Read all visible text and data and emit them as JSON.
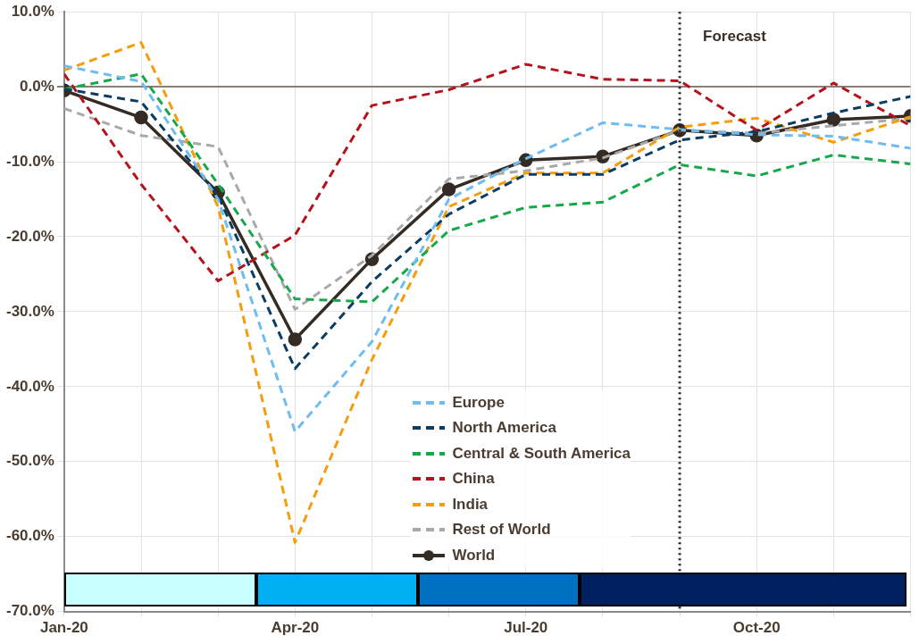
{
  "chart_data": {
    "type": "line",
    "x": [
      "2020-01",
      "2020-02",
      "2020-03",
      "2020-04",
      "2020-05",
      "2020-06",
      "2020-07",
      "2020-08",
      "2020-09",
      "2020-10",
      "2020-11",
      "2020-12"
    ],
    "series": [
      {
        "name": "Europe",
        "color": "#6dbdf0",
        "line_style": "dashed",
        "marker": "none",
        "values": [
          2.8,
          0.7,
          -15,
          -46,
          -34,
          -15,
          -9.6,
          -4.8,
          -5.7,
          -6.4,
          -6.6,
          -8.2
        ]
      },
      {
        "name": "North America",
        "color": "#0b3c61",
        "line_style": "dashed",
        "marker": "none",
        "values": [
          -0.3,
          -2,
          -14.5,
          -37.6,
          -26,
          -17,
          -11.7,
          -11.7,
          -7.1,
          -6,
          -3.5,
          -1.3
        ]
      },
      {
        "name": "Central & South America",
        "color": "#16a84a",
        "line_style": "dashed",
        "marker": "none",
        "values": [
          -0.3,
          1.7,
          -13,
          -28.3,
          -28.7,
          -19.2,
          -16.1,
          -15.4,
          -10.4,
          -11.9,
          -9.1,
          -10.3
        ]
      },
      {
        "name": "China",
        "color": "#b5121b",
        "line_style": "dashed",
        "marker": "none",
        "values": [
          1.7,
          -13,
          -25.9,
          -19.8,
          -2.5,
          -0.4,
          3,
          1,
          0.8,
          -5.8,
          0.5,
          -5.2
        ]
      },
      {
        "name": "India",
        "color": "#f59d0c",
        "line_style": "dashed",
        "marker": "none",
        "values": [
          2.2,
          5.9,
          -16,
          -60.8,
          -36.4,
          -16,
          -11.5,
          -11.5,
          -5.4,
          -4.2,
          -7.4,
          -4
        ]
      },
      {
        "name": "Rest of World",
        "color": "#a9a9a9",
        "line_style": "dashed",
        "marker": "none",
        "values": [
          -2.9,
          -6.5,
          -8,
          -29.7,
          -22.5,
          -12.3,
          -11.2,
          -9.5,
          -5.8,
          -6.2,
          -5.2,
          -4.2
        ]
      },
      {
        "name": "World",
        "color": "#332b24",
        "line_style": "solid",
        "marker": "circle",
        "values": [
          -0.5,
          -4.1,
          -14.1,
          -33.7,
          -23,
          -13.7,
          -9.8,
          -9.3,
          -5.8,
          -6.5,
          -4.4,
          -3.9
        ]
      }
    ],
    "xlim": [
      "2020-01",
      "2020-12"
    ],
    "xticks": [
      {
        "value": "2020-01",
        "label": "Jan-20"
      },
      {
        "value": "2020-02",
        "label": null
      },
      {
        "value": "2020-03",
        "label": null
      },
      {
        "value": "2020-04",
        "label": "Apr-20"
      },
      {
        "value": "2020-05",
        "label": null
      },
      {
        "value": "2020-06",
        "label": null
      },
      {
        "value": "2020-07",
        "label": "Jul-20"
      },
      {
        "value": "2020-08",
        "label": null
      },
      {
        "value": "2020-09",
        "label": null
      },
      {
        "value": "2020-10",
        "label": "Oct-20"
      },
      {
        "value": "2020-11",
        "label": null
      },
      {
        "value": "2020-12",
        "label": null
      }
    ],
    "ylim": [
      -70,
      10
    ],
    "yticks": [
      {
        "value": -70,
        "label": "-70.0%"
      },
      {
        "value": -60,
        "label": "-60.0%"
      },
      {
        "value": -50,
        "label": "-50.0%"
      },
      {
        "value": -40,
        "label": "-40.0%"
      },
      {
        "value": -30,
        "label": "-30.0%"
      },
      {
        "value": -20,
        "label": "-20.0%"
      },
      {
        "value": -10,
        "label": "-10.0%"
      },
      {
        "value": 0,
        "label": "0.0%"
      },
      {
        "value": 10,
        "label": "10.0%"
      }
    ],
    "ref_lines": [
      {
        "axis": "x",
        "value": "2020-09",
        "label": "Forecast",
        "color": "#2b2118",
        "line_style": "dotted"
      }
    ],
    "grid": true,
    "legend": "bottom"
  }
}
